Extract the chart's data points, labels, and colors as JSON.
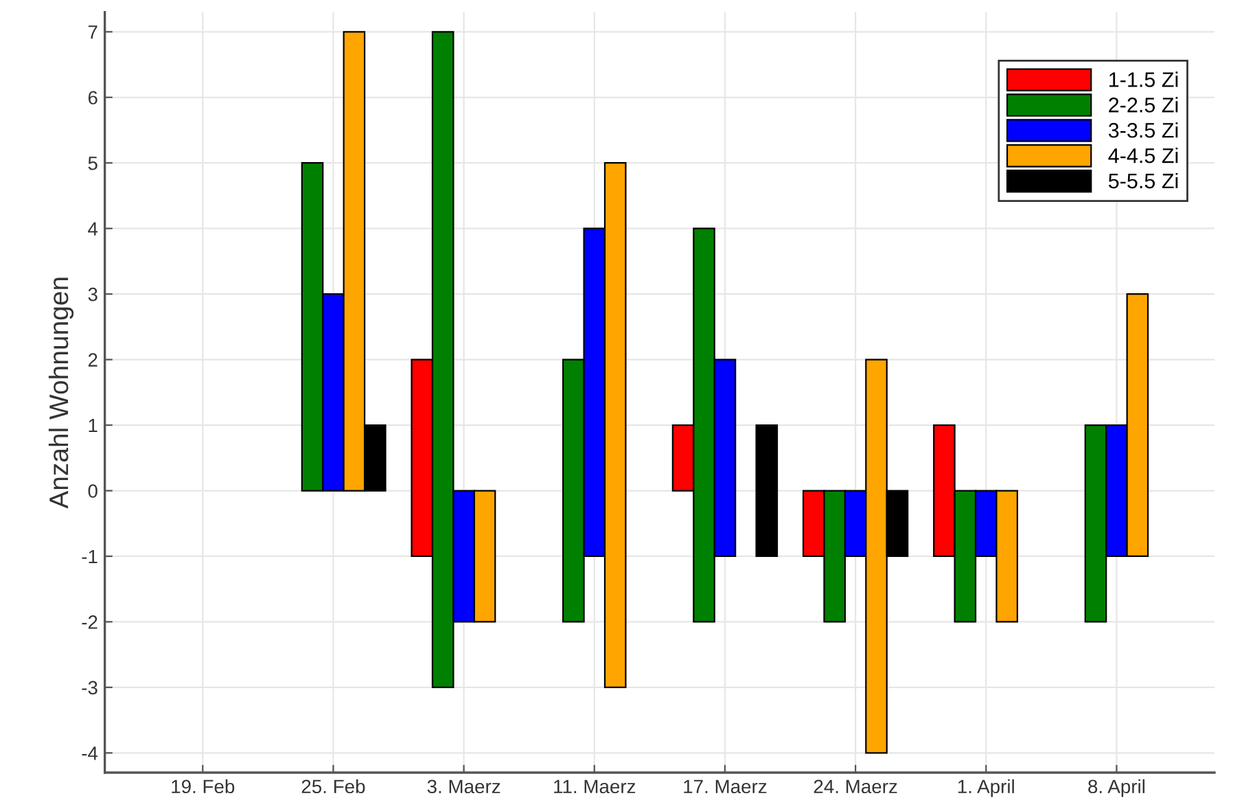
{
  "chart_data": {
    "type": "bar",
    "ylabel": "Anzahl Wohnungen",
    "categories": [
      "19. Feb",
      "25. Feb",
      "3. Maerz",
      "11. Maerz",
      "17. Maerz",
      "24. Maerz",
      "1. April",
      "8. April"
    ],
    "series": [
      {
        "name": "1-1.5 Zi",
        "color": "#ff0000",
        "base": [
          null,
          null,
          -1,
          null,
          0,
          -1,
          -1,
          null
        ],
        "values": [
          null,
          null,
          3,
          null,
          1,
          1,
          2,
          null
        ]
      },
      {
        "name": "2-2.5 Zi",
        "color": "#008000",
        "base": [
          null,
          0,
          -3,
          -2,
          -2,
          -2,
          -2,
          -2
        ],
        "values": [
          null,
          5,
          10,
          4,
          6,
          2,
          2,
          3
        ]
      },
      {
        "name": "3-3.5 Zi",
        "color": "#0000ff",
        "base": [
          null,
          0,
          -2,
          -1,
          -1,
          -1,
          -1,
          -1
        ],
        "values": [
          null,
          3,
          2,
          5,
          3,
          1,
          1,
          2
        ]
      },
      {
        "name": "4-4.5 Zi",
        "color": "#ffa500",
        "base": [
          null,
          0,
          -2,
          -3,
          null,
          -4,
          -2,
          -1
        ],
        "values": [
          null,
          7,
          2,
          8,
          null,
          6,
          2,
          4
        ]
      },
      {
        "name": "5-5.5 Zi",
        "color": "#000000",
        "base": [
          null,
          0,
          null,
          null,
          -1,
          -1,
          null,
          null
        ],
        "values": [
          null,
          1,
          null,
          null,
          2,
          1,
          null,
          null
        ]
      }
    ],
    "ylim": [
      -4.3,
      7.3
    ],
    "yticks": [
      -4,
      -3,
      -2,
      -1,
      0,
      1,
      2,
      3,
      4,
      5,
      6,
      7
    ],
    "grid": true,
    "legend": "top right"
  }
}
